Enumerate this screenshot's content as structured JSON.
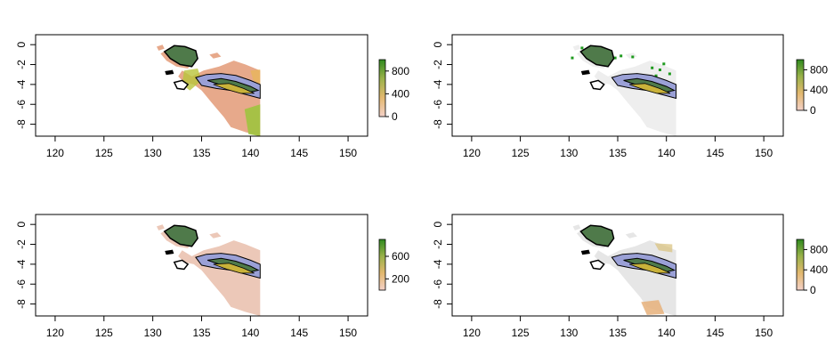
{
  "chart_data": [
    {
      "type": "heatmap",
      "xlim": [
        118,
        152
      ],
      "ylim": [
        -9.2,
        1.0
      ],
      "x_ticks": [
        120,
        125,
        130,
        135,
        140,
        145,
        150
      ],
      "y_ticks": [
        0,
        -2,
        -4,
        -6,
        -8
      ],
      "legend": {
        "position": "right",
        "ticks": [
          0,
          400,
          800
        ],
        "range": [
          0,
          1000
        ],
        "colors": [
          "#f3d1c8",
          "#e3b86f",
          "#9ab24a",
          "#2f8a1f"
        ]
      },
      "layer_color": "#e7a98b"
    },
    {
      "type": "heatmap",
      "xlim": [
        118,
        152
      ],
      "ylim": [
        -9.2,
        1.0
      ],
      "x_ticks": [
        120,
        125,
        130,
        135,
        140,
        145,
        150
      ],
      "y_ticks": [
        0,
        -2,
        -4,
        -6,
        -8
      ],
      "legend": {
        "position": "right",
        "ticks": [
          0,
          400,
          800
        ],
        "range": [
          0,
          1000
        ],
        "colors": [
          "#f3d1c8",
          "#e3b86f",
          "#9ab24a",
          "#2f8a1f"
        ]
      },
      "layer_color": "#eeeeee"
    },
    {
      "type": "heatmap",
      "xlim": [
        118,
        152
      ],
      "ylim": [
        -9.2,
        1.0
      ],
      "x_ticks": [
        120,
        125,
        130,
        135,
        140,
        145,
        150
      ],
      "y_ticks": [
        0,
        -2,
        -4,
        -6,
        -8
      ],
      "legend": {
        "position": "right",
        "ticks": [
          200,
          600
        ],
        "range": [
          0,
          900
        ],
        "colors": [
          "#f3d1c8",
          "#e3b86f",
          "#9ab24a",
          "#2f8a1f"
        ]
      },
      "layer_color": "#ecc8b8"
    },
    {
      "type": "heatmap",
      "xlim": [
        118,
        152
      ],
      "ylim": [
        -9.2,
        1.0
      ],
      "x_ticks": [
        120,
        125,
        130,
        135,
        140,
        145,
        150
      ],
      "y_ticks": [
        0,
        -2,
        -4,
        -6,
        -8
      ],
      "legend": {
        "position": "right",
        "ticks": [
          0,
          400,
          800
        ],
        "range": [
          0,
          1000
        ],
        "colors": [
          "#f3d1c8",
          "#e3b86f",
          "#9ab24a",
          "#2f8a1f"
        ]
      },
      "layer_color": "#e6e6e6"
    }
  ],
  "colors": {
    "axis": "#000000",
    "polygon_fill": "#9aa0d6",
    "polygon_dark": "#4f7a4a",
    "highland": "#c9b23a",
    "background": "#ffffff"
  }
}
